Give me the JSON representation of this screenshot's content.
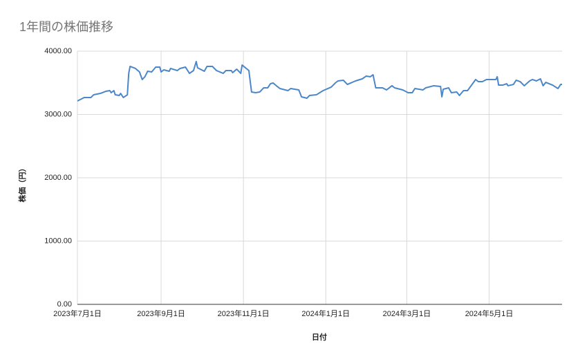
{
  "chart_data": {
    "type": "line",
    "title": "1年間の株価推移",
    "x_label": "日付",
    "y_label": "株価（円）",
    "color": "#4a86c8",
    "grid": true,
    "xlim": [
      "2023-07-01",
      "2024-06-24"
    ],
    "ylim": [
      0,
      4000
    ],
    "xticks": [
      {
        "value": "2023-07-01",
        "label": "2023年7月1日"
      },
      {
        "value": "2023-09-01",
        "label": "2023年9月1日"
      },
      {
        "value": "2023-11-01",
        "label": "2023年11月1日"
      },
      {
        "value": "2024-01-01",
        "label": "2024年1月1日"
      },
      {
        "value": "2024-03-01",
        "label": "2024年3月1日"
      },
      {
        "value": "2024-05-01",
        "label": "2024年5月1日"
      }
    ],
    "yticks": [
      {
        "value": 0,
        "label": "0.00"
      },
      {
        "value": 1000,
        "label": "1000.00"
      },
      {
        "value": 2000,
        "label": "2000.00"
      },
      {
        "value": 3000,
        "label": "3000.00"
      },
      {
        "value": 4000,
        "label": "4000.00"
      }
    ],
    "x": [
      "2023-07-01",
      "2023-07-04",
      "2023-07-06",
      "2023-07-11",
      "2023-07-13",
      "2023-07-18",
      "2023-07-22",
      "2023-07-25",
      "2023-07-26",
      "2023-07-28",
      "2023-07-29",
      "2023-08-01",
      "2023-08-02",
      "2023-08-04",
      "2023-08-07",
      "2023-08-08",
      "2023-08-09",
      "2023-08-13",
      "2023-08-16",
      "2023-08-18",
      "2023-08-20",
      "2023-08-22",
      "2023-08-25",
      "2023-08-28",
      "2023-08-31",
      "2023-09-01",
      "2023-09-03",
      "2023-09-07",
      "2023-09-08",
      "2023-09-13",
      "2023-09-15",
      "2023-09-19",
      "2023-09-22",
      "2023-09-25",
      "2023-09-27",
      "2023-09-28",
      "2023-10-03",
      "2023-10-05",
      "2023-10-09",
      "2023-10-12",
      "2023-10-17",
      "2023-10-19",
      "2023-10-23",
      "2023-10-24",
      "2023-10-27",
      "2023-10-30",
      "2023-10-31",
      "2023-11-05",
      "2023-11-07",
      "2023-11-10",
      "2023-11-13",
      "2023-11-16",
      "2023-11-19",
      "2023-11-21",
      "2023-11-23",
      "2023-11-26",
      "2023-11-28",
      "2023-12-04",
      "2023-12-06",
      "2023-12-12",
      "2023-12-14",
      "2023-12-18",
      "2023-12-20",
      "2023-12-25",
      "2023-12-30",
      "2024-01-05",
      "2024-01-08",
      "2024-01-10",
      "2024-01-14",
      "2024-01-17",
      "2024-01-23",
      "2024-01-28",
      "2024-01-31",
      "2024-02-03",
      "2024-02-05",
      "2024-02-07",
      "2024-02-12",
      "2024-02-15",
      "2024-02-19",
      "2024-02-21",
      "2024-02-27",
      "2024-03-02",
      "2024-03-05",
      "2024-03-07",
      "2024-03-13",
      "2024-03-15",
      "2024-03-21",
      "2024-03-26",
      "2024-03-27",
      "2024-03-28",
      "2024-04-01",
      "2024-04-03",
      "2024-04-07",
      "2024-04-09",
      "2024-04-12",
      "2024-04-15",
      "2024-04-21",
      "2024-04-23",
      "2024-04-26",
      "2024-04-29",
      "2024-05-06",
      "2024-05-07",
      "2024-05-08",
      "2024-05-11",
      "2024-05-14",
      "2024-05-15",
      "2024-05-19",
      "2024-05-21",
      "2024-05-24",
      "2024-05-27",
      "2024-05-31",
      "2024-06-02",
      "2024-06-05",
      "2024-06-08",
      "2024-06-10",
      "2024-06-12",
      "2024-06-17",
      "2024-06-21",
      "2024-06-23",
      "2024-06-24"
    ],
    "values": [
      3213,
      3246,
      3268,
      3268,
      3311,
      3333,
      3366,
      3377,
      3344,
      3377,
      3311,
      3301,
      3333,
      3268,
      3311,
      3650,
      3760,
      3727,
      3672,
      3552,
      3596,
      3683,
      3672,
      3749,
      3749,
      3672,
      3705,
      3683,
      3727,
      3694,
      3727,
      3749,
      3650,
      3694,
      3836,
      3738,
      3683,
      3760,
      3760,
      3694,
      3650,
      3694,
      3694,
      3661,
      3716,
      3650,
      3781,
      3694,
      3355,
      3344,
      3355,
      3421,
      3421,
      3486,
      3497,
      3443,
      3410,
      3377,
      3410,
      3388,
      3279,
      3257,
      3301,
      3311,
      3377,
      3432,
      3497,
      3530,
      3541,
      3475,
      3530,
      3563,
      3607,
      3596,
      3628,
      3421,
      3421,
      3388,
      3454,
      3421,
      3388,
      3344,
      3344,
      3410,
      3388,
      3421,
      3454,
      3443,
      3279,
      3399,
      3421,
      3344,
      3355,
      3301,
      3377,
      3377,
      3552,
      3519,
      3519,
      3552,
      3552,
      3596,
      3464,
      3464,
      3486,
      3454,
      3475,
      3541,
      3519,
      3454,
      3530,
      3552,
      3530,
      3563,
      3454,
      3508,
      3464,
      3410,
      3475,
      3475
    ]
  }
}
